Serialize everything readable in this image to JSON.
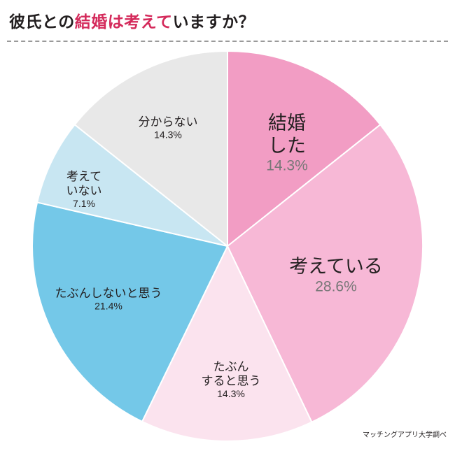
{
  "title": {
    "part1": "彼氏との",
    "highlight": "結婚は考えて",
    "part2": "いますか？",
    "highlight_color": "#d42a5b"
  },
  "source": "マッチングアプリ大学調べ",
  "chart_data": {
    "type": "pie",
    "start_angle_deg": 0,
    "direction": "clockwise",
    "slices": [
      {
        "label": [
          "結婚",
          "した"
        ],
        "value": 14.3,
        "display": "14.3%",
        "color": "#f29dc4",
        "label_color": "#231f20",
        "value_color": "#777777"
      },
      {
        "label": [
          "考えている"
        ],
        "value": 28.6,
        "display": "28.6%",
        "color": "#f7b8d6",
        "label_color": "#231f20",
        "value_color": "#777777"
      },
      {
        "label": [
          "たぶん",
          "すると思う"
        ],
        "value": 14.3,
        "display": "14.3%",
        "color": "#fbe3ee",
        "label_color": "#231f20",
        "value_color": "#231f20"
      },
      {
        "label": [
          "たぶんしないと思う"
        ],
        "value": 21.4,
        "display": "21.4%",
        "color": "#74c8e8",
        "label_color": "#231f20",
        "value_color": "#231f20"
      },
      {
        "label": [
          "考えて",
          "いない"
        ],
        "value": 7.1,
        "display": "7.1%",
        "color": "#c8e6f2",
        "label_color": "#231f20",
        "value_color": "#231f20"
      },
      {
        "label": [
          "分からない"
        ],
        "value": 14.3,
        "display": "14.3%",
        "color": "#e8e8e8",
        "label_color": "#231f20",
        "value_color": "#231f20"
      }
    ]
  }
}
